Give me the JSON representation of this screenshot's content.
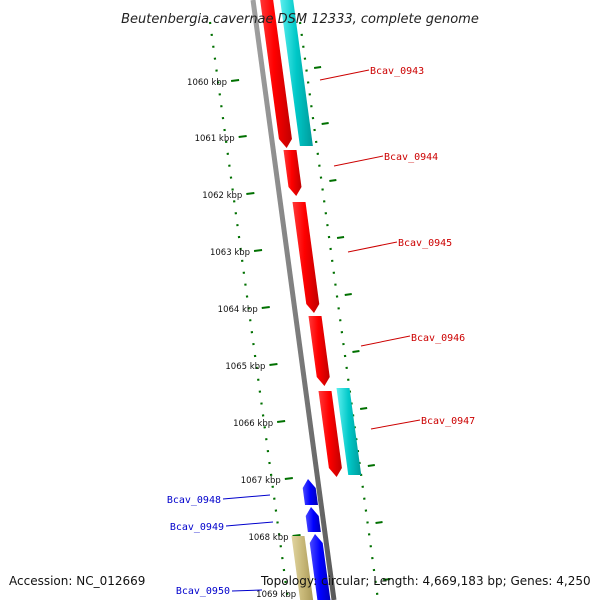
{
  "header": {
    "title": "Beutenbergia cavernae DSM 12333, complete genome"
  },
  "footer": {
    "accession": "Accession: NC_012669",
    "topology": "Topology: circular; Length: 4,669,183 bp; Genes: 4,250"
  },
  "colors": {
    "forward_gene": "#ff0000",
    "forward_cds": "#00c8c8",
    "reverse_gene": "#0000ff",
    "reverse_cds": "#c8b878",
    "forward_label": "#cc0000",
    "reverse_label": "#0000cc",
    "backbone": "#808080",
    "ticks": "#007000"
  },
  "ruler": {
    "ticks": [
      {
        "label": "1060 kbp"
      },
      {
        "label": "1061 kbp"
      },
      {
        "label": "1062 kbp"
      },
      {
        "label": "1063 kbp"
      },
      {
        "label": "1064 kbp"
      },
      {
        "label": "1065 kbp"
      },
      {
        "label": "1066 kbp"
      },
      {
        "label": "1067 kbp"
      },
      {
        "label": "1068 kbp"
      },
      {
        "label": "1069 kbp"
      }
    ]
  },
  "genes": {
    "forward": [
      {
        "name": "Bcav_0943"
      },
      {
        "name": "Bcav_0944"
      },
      {
        "name": "Bcav_0945"
      },
      {
        "name": "Bcav_0946"
      },
      {
        "name": "Bcav_0947"
      }
    ],
    "reverse": [
      {
        "name": "Bcav_0948"
      },
      {
        "name": "Bcav_0949"
      },
      {
        "name": "Bcav_0950"
      }
    ]
  }
}
